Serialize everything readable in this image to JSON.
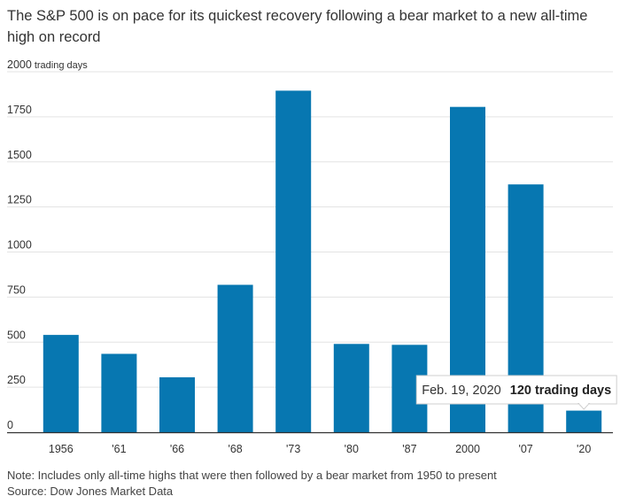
{
  "title": "The S&P 500 is on pace for its quickest recovery following a bear market to a new all-time high on record",
  "note": "Note: Includes only all-time highs that were then followed by a bear market from 1950 to present",
  "source": "Source: Dow Jones Market Data",
  "colors": {
    "bar": "#0777b1",
    "grid": "#e3e3e3",
    "axis": "#333333"
  },
  "chart_data": {
    "type": "bar",
    "categories": [
      "1956",
      "'61",
      "'66",
      "'68",
      "'73",
      "'80",
      "'87",
      "2000",
      "'07",
      "'20"
    ],
    "values": [
      540,
      435,
      305,
      818,
      1895,
      490,
      485,
      1805,
      1375,
      120
    ],
    "ylim": [
      0,
      2000
    ],
    "yticks": [
      "0",
      "250",
      "500",
      "750",
      "1000",
      "1250",
      "1500",
      "1750",
      "2000"
    ],
    "ytick_values": [
      0,
      250,
      500,
      750,
      1000,
      1250,
      1500,
      1750,
      2000
    ],
    "yunit": "trading days",
    "grid": true,
    "annotation": {
      "date": "Feb. 19, 2020",
      "value": "120 trading days"
    }
  }
}
